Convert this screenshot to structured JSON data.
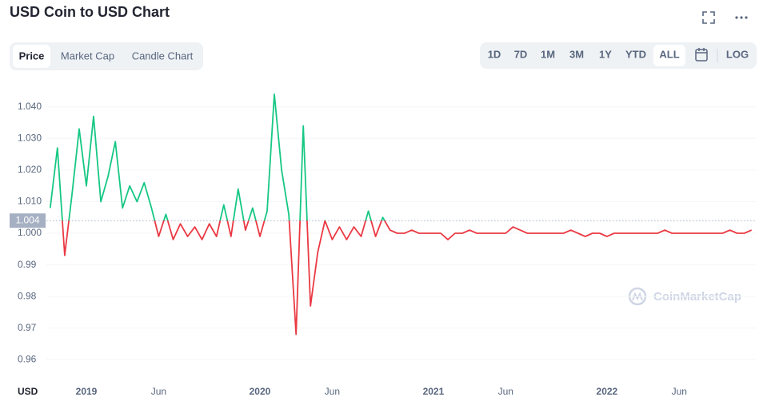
{
  "header": {
    "title": "USD Coin to USD Chart",
    "tabs": [
      "Price",
      "Market Cap",
      "Candle Chart"
    ],
    "selected_tab": 0,
    "ranges": [
      "1D",
      "7D",
      "1M",
      "3M",
      "1Y",
      "YTD",
      "ALL"
    ],
    "selected_range": 6,
    "log": "LOG",
    "watermark": "CoinMarketCap"
  },
  "chart_data": {
    "type": "line",
    "y_label": "USD",
    "categories": [
      null,
      null,
      null,
      null,
      null,
      "2019",
      null,
      null,
      null,
      null,
      null,
      null,
      null,
      null,
      null,
      "Jun",
      null,
      null,
      null,
      null,
      null,
      null,
      null,
      null,
      null,
      null,
      null,
      null,
      null,
      "2020",
      null,
      null,
      null,
      null,
      null,
      null,
      null,
      null,
      null,
      "Jun",
      null,
      null,
      null,
      null,
      null,
      null,
      null,
      null,
      null,
      null,
      null,
      null,
      null,
      "2021",
      null,
      null,
      null,
      null,
      null,
      null,
      null,
      null,
      null,
      "Jun",
      null,
      null,
      null,
      null,
      null,
      null,
      null,
      null,
      null,
      null,
      null,
      null,
      null,
      "2022",
      null,
      null,
      null,
      null,
      null,
      null,
      null,
      null,
      null,
      "Jun",
      null,
      null,
      null,
      null,
      null,
      null,
      null,
      null,
      null,
      null
    ],
    "values": [
      1.008,
      1.027,
      0.993,
      1.012,
      1.033,
      1.015,
      1.037,
      1.01,
      1.018,
      1.029,
      1.008,
      1.015,
      1.01,
      1.016,
      1.008,
      0.999,
      1.006,
      0.998,
      1.003,
      0.999,
      1.002,
      0.998,
      1.003,
      0.999,
      1.009,
      0.999,
      1.014,
      1.001,
      1.008,
      0.999,
      1.007,
      1.044,
      1.02,
      1.006,
      0.968,
      1.034,
      0.977,
      0.994,
      1.004,
      0.998,
      1.002,
      0.998,
      1.002,
      0.999,
      1.007,
      0.999,
      1.005,
      1.001,
      1.0,
      1.0,
      1.001,
      1.0,
      1.0,
      1.0,
      1.0,
      0.998,
      1.0,
      1.0,
      1.001,
      1.0,
      1.0,
      1.0,
      1.0,
      1.0,
      1.002,
      1.001,
      1.0,
      1.0,
      1.0,
      1.0,
      1.0,
      1.0,
      1.001,
      1.0,
      0.999,
      1.0,
      1.0,
      0.999,
      1.0,
      1.0,
      1.0,
      1.0,
      1.0,
      1.0,
      1.0,
      1.001,
      1.0,
      1.0,
      1.0,
      1.0,
      1.0,
      1.0,
      1.0,
      1.0,
      1.001,
      1.0,
      1.0,
      1.001
    ],
    "color_above": "#16c784",
    "color_below": "#ea3943",
    "baseline": 1.004,
    "ylim": [
      0.953,
      1.046
    ],
    "yticks": [
      {
        "value": 1.04,
        "label": "1.040"
      },
      {
        "value": 1.03,
        "label": "1.030"
      },
      {
        "value": 1.02,
        "label": "1.020"
      },
      {
        "value": 1.01,
        "label": "1.010"
      },
      {
        "value": 1,
        "label": "1.000"
      },
      0.99,
      0.98,
      0.97,
      0.96
    ],
    "grid": true
  }
}
